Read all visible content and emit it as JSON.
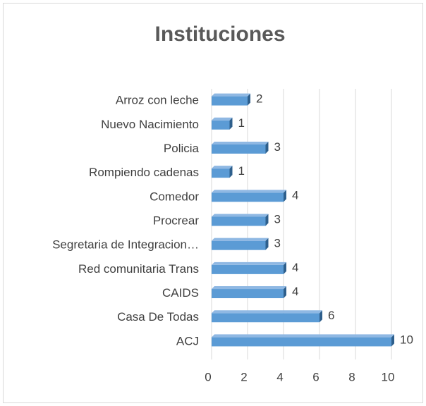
{
  "chart_data": {
    "type": "bar",
    "orientation": "horizontal",
    "title": "Instituciones",
    "categories": [
      "Arroz con leche",
      "Nuevo Nacimiento",
      "Policia",
      "Rompiendo cadenas",
      "Comedor",
      "Procrear",
      "Segretaria de Integracion…",
      "Red comunitaria Trans",
      "CAIDS",
      "Casa De Todas",
      "ACJ"
    ],
    "values": [
      2,
      1,
      3,
      1,
      4,
      3,
      3,
      4,
      4,
      6,
      10
    ],
    "color": "#5b9bd5",
    "xlim": [
      0,
      10
    ],
    "xticks": [
      0,
      2,
      4,
      6,
      8,
      10
    ],
    "grid": true
  }
}
